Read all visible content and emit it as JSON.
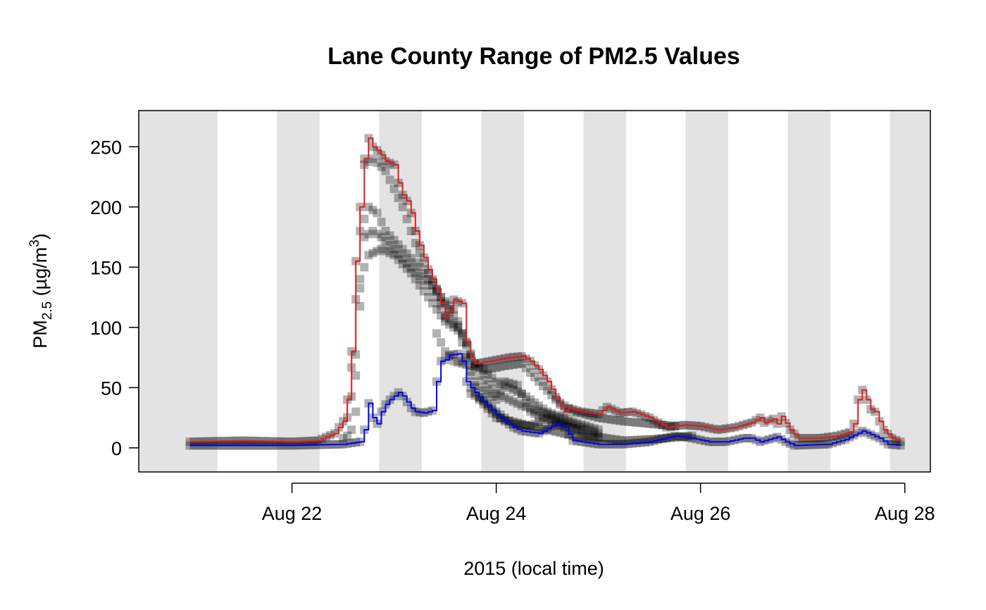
{
  "chart_data": {
    "type": "scatter",
    "title": "Lane County Range of PM2.5 Values",
    "xlabel": "2015  (local time)",
    "ylabel": {
      "pre": "PM",
      "sub": "2.5",
      "mid": " (µg/m",
      "sup": "3",
      "post": ")"
    },
    "x_date_start": "2015-08-21T00:00",
    "x_date_end": "2015-08-28T00:00",
    "xlim": [
      "2015-08-20T12:00",
      "2015-08-28T06:00"
    ],
    "ylim": [
      -20,
      280
    ],
    "yticks": [
      0,
      50,
      100,
      150,
      200,
      250
    ],
    "ytick_labels": [
      "0",
      "50",
      "100",
      "150",
      "200",
      "250"
    ],
    "xticks": [
      "2015-08-22T00:00",
      "2015-08-24T00:00",
      "2015-08-26T00:00",
      "2015-08-28T00:00"
    ],
    "xtick_labels": [
      "Aug 22",
      "Aug 24",
      "Aug 26",
      "Aug 28"
    ],
    "night_shading": [
      {
        "start": "2015-08-20T12:00",
        "end": "2015-08-21T06:30"
      },
      {
        "start": "2015-08-21T20:30",
        "end": "2015-08-22T06:30"
      },
      {
        "start": "2015-08-22T20:30",
        "end": "2015-08-23T06:30"
      },
      {
        "start": "2015-08-23T20:30",
        "end": "2015-08-24T06:30"
      },
      {
        "start": "2015-08-24T20:30",
        "end": "2015-08-25T06:30"
      },
      {
        "start": "2015-08-25T20:30",
        "end": "2015-08-26T06:30"
      },
      {
        "start": "2015-08-26T20:30",
        "end": "2015-08-27T06:30"
      },
      {
        "start": "2015-08-27T20:30",
        "end": "2015-08-28T06:00"
      }
    ],
    "series": [
      {
        "name": "",
        "role": "max",
        "style": "step",
        "color": "#e41a1c",
        "points": [
          [
            "2015-08-21T00:00",
            5
          ],
          [
            "2015-08-21T12:00",
            6
          ],
          [
            "2015-08-22T00:00",
            5
          ],
          [
            "2015-08-22T06:00",
            6
          ],
          [
            "2015-08-22T10:00",
            12
          ],
          [
            "2015-08-22T12:00",
            22
          ],
          [
            "2015-08-22T13:00",
            40
          ],
          [
            "2015-08-22T14:00",
            80
          ],
          [
            "2015-08-22T15:00",
            155
          ],
          [
            "2015-08-22T16:00",
            200
          ],
          [
            "2015-08-22T17:00",
            240
          ],
          [
            "2015-08-22T18:00",
            257
          ],
          [
            "2015-08-22T19:00",
            250
          ],
          [
            "2015-08-22T20:00",
            247
          ],
          [
            "2015-08-22T21:00",
            243
          ],
          [
            "2015-08-22T22:00",
            238
          ],
          [
            "2015-08-23T00:00",
            235
          ],
          [
            "2015-08-23T01:00",
            220
          ],
          [
            "2015-08-23T02:00",
            210
          ],
          [
            "2015-08-23T03:00",
            205
          ],
          [
            "2015-08-23T04:00",
            195
          ],
          [
            "2015-08-23T05:00",
            180
          ],
          [
            "2015-08-23T06:00",
            168
          ],
          [
            "2015-08-23T07:00",
            158
          ],
          [
            "2015-08-23T08:00",
            148
          ],
          [
            "2015-08-23T09:00",
            140
          ],
          [
            "2015-08-23T10:00",
            132
          ],
          [
            "2015-08-23T11:00",
            120
          ],
          [
            "2015-08-23T12:00",
            108
          ],
          [
            "2015-08-23T13:00",
            113
          ],
          [
            "2015-08-23T14:00",
            123
          ],
          [
            "2015-08-23T16:00",
            120
          ],
          [
            "2015-08-23T17:00",
            88
          ],
          [
            "2015-08-23T18:00",
            75
          ],
          [
            "2015-08-23T19:00",
            70
          ],
          [
            "2015-08-23T21:00",
            71
          ],
          [
            "2015-08-24T00:00",
            73
          ],
          [
            "2015-08-24T03:00",
            75
          ],
          [
            "2015-08-24T06:00",
            76
          ],
          [
            "2015-08-24T08:00",
            72
          ],
          [
            "2015-08-24T10:00",
            65
          ],
          [
            "2015-08-24T12:00",
            55
          ],
          [
            "2015-08-24T14:00",
            42
          ],
          [
            "2015-08-24T16:00",
            30
          ],
          [
            "2015-08-24T17:00",
            33
          ],
          [
            "2015-08-24T20:00",
            30
          ],
          [
            "2015-08-25T00:00",
            28
          ],
          [
            "2015-08-25T02:00",
            34
          ],
          [
            "2015-08-25T05:00",
            29
          ],
          [
            "2015-08-25T08:00",
            30
          ],
          [
            "2015-08-25T12:00",
            25
          ],
          [
            "2015-08-25T16:00",
            17
          ],
          [
            "2015-08-25T20:00",
            19
          ],
          [
            "2015-08-26T00:00",
            18
          ],
          [
            "2015-08-26T04:00",
            15
          ],
          [
            "2015-08-26T08:00",
            17
          ],
          [
            "2015-08-26T12:00",
            21
          ],
          [
            "2015-08-26T14:00",
            25
          ],
          [
            "2015-08-26T15:00",
            21
          ],
          [
            "2015-08-26T17:00",
            24
          ],
          [
            "2015-08-26T18:00",
            20
          ],
          [
            "2015-08-26T19:00",
            26
          ],
          [
            "2015-08-26T21:00",
            15
          ],
          [
            "2015-08-26T23:00",
            8
          ],
          [
            "2015-08-27T04:00",
            8
          ],
          [
            "2015-08-27T08:00",
            10
          ],
          [
            "2015-08-27T11:00",
            13
          ],
          [
            "2015-08-27T12:00",
            20
          ],
          [
            "2015-08-27T13:00",
            40
          ],
          [
            "2015-08-27T14:00",
            48
          ],
          [
            "2015-08-27T15:00",
            40
          ],
          [
            "2015-08-27T16:00",
            32
          ],
          [
            "2015-08-27T17:00",
            30
          ],
          [
            "2015-08-27T18:00",
            22
          ],
          [
            "2015-08-27T19:00",
            15
          ],
          [
            "2015-08-27T21:00",
            8
          ],
          [
            "2015-08-27T23:00",
            5
          ]
        ]
      },
      {
        "name": "",
        "role": "min",
        "style": "step",
        "color": "#0000ff",
        "points": [
          [
            "2015-08-21T00:00",
            2
          ],
          [
            "2015-08-21T12:00",
            2
          ],
          [
            "2015-08-22T00:00",
            2
          ],
          [
            "2015-08-22T12:00",
            3
          ],
          [
            "2015-08-22T16:00",
            5
          ],
          [
            "2015-08-22T17:00",
            15
          ],
          [
            "2015-08-22T18:00",
            37
          ],
          [
            "2015-08-22T19:00",
            25
          ],
          [
            "2015-08-22T20:00",
            20
          ],
          [
            "2015-08-22T21:00",
            30
          ],
          [
            "2015-08-22T22:00",
            36
          ],
          [
            "2015-08-22T23:00",
            40
          ],
          [
            "2015-08-23T00:00",
            43
          ],
          [
            "2015-08-23T01:00",
            46
          ],
          [
            "2015-08-23T02:00",
            43
          ],
          [
            "2015-08-23T03:00",
            38
          ],
          [
            "2015-08-23T04:00",
            33
          ],
          [
            "2015-08-23T05:00",
            30
          ],
          [
            "2015-08-23T07:00",
            29
          ],
          [
            "2015-08-23T09:00",
            31
          ],
          [
            "2015-08-23T10:00",
            55
          ],
          [
            "2015-08-23T11:00",
            72
          ],
          [
            "2015-08-23T12:00",
            73
          ],
          [
            "2015-08-23T13:00",
            77
          ],
          [
            "2015-08-23T15:00",
            78
          ],
          [
            "2015-08-23T16:00",
            72
          ],
          [
            "2015-08-23T17:00",
            55
          ],
          [
            "2015-08-23T18:00",
            50
          ],
          [
            "2015-08-23T20:00",
            42
          ],
          [
            "2015-08-23T22:00",
            35
          ],
          [
            "2015-08-24T00:00",
            28
          ],
          [
            "2015-08-24T02:00",
            22
          ],
          [
            "2015-08-24T04:00",
            17
          ],
          [
            "2015-08-24T06:00",
            14
          ],
          [
            "2015-08-24T10:00",
            12
          ],
          [
            "2015-08-24T14:00",
            20
          ],
          [
            "2015-08-24T16:00",
            17
          ],
          [
            "2015-08-24T18:00",
            6
          ],
          [
            "2015-08-25T00:00",
            3
          ],
          [
            "2015-08-25T06:00",
            3
          ],
          [
            "2015-08-25T12:00",
            5
          ],
          [
            "2015-08-25T18:00",
            10
          ],
          [
            "2015-08-25T22:00",
            8
          ],
          [
            "2015-08-26T02:00",
            5
          ],
          [
            "2015-08-26T06:00",
            5
          ],
          [
            "2015-08-26T10:00",
            8
          ],
          [
            "2015-08-26T12:00",
            8
          ],
          [
            "2015-08-26T14:00",
            5
          ],
          [
            "2015-08-26T18:00",
            9
          ],
          [
            "2015-08-26T20:00",
            5
          ],
          [
            "2015-08-26T22:00",
            2
          ],
          [
            "2015-08-27T06:00",
            3
          ],
          [
            "2015-08-27T10:00",
            7
          ],
          [
            "2015-08-27T14:00",
            14
          ],
          [
            "2015-08-27T16:00",
            11
          ],
          [
            "2015-08-27T18:00",
            8
          ],
          [
            "2015-08-27T20:00",
            3
          ],
          [
            "2015-08-27T23:00",
            2
          ]
        ]
      }
    ],
    "site_traces": [
      [
        [
          "2015-08-22T12:00",
          8
        ],
        [
          "2015-08-22T15:00",
          60
        ],
        [
          "2015-08-22T17:00",
          175
        ],
        [
          "2015-08-22T19:00",
          180
        ],
        [
          "2015-08-22T21:00",
          175
        ],
        [
          "2015-08-23T00:00",
          165
        ],
        [
          "2015-08-23T04:00",
          150
        ],
        [
          "2015-08-23T08:00",
          135
        ],
        [
          "2015-08-23T10:00",
          125
        ],
        [
          "2015-08-23T12:00",
          110
        ],
        [
          "2015-08-23T15:00",
          100
        ],
        [
          "2015-08-23T17:00",
          75
        ],
        [
          "2015-08-23T20:00",
          40
        ],
        [
          "2015-08-24T00:00",
          25
        ],
        [
          "2015-08-24T06:00",
          20
        ],
        [
          "2015-08-24T12:00",
          15
        ],
        [
          "2015-08-24T18:00",
          10
        ],
        [
          "2015-08-25T00:00",
          8
        ]
      ],
      [
        [
          "2015-08-22T13:00",
          10
        ],
        [
          "2015-08-22T16:00",
          180
        ],
        [
          "2015-08-22T18:00",
          200
        ],
        [
          "2015-08-22T20:00",
          195
        ],
        [
          "2015-08-22T22:00",
          180
        ],
        [
          "2015-08-23T02:00",
          165
        ],
        [
          "2015-08-23T06:00",
          150
        ],
        [
          "2015-08-23T10:00",
          130
        ],
        [
          "2015-08-23T14:00",
          110
        ],
        [
          "2015-08-23T17:00",
          85
        ],
        [
          "2015-08-23T20:00",
          60
        ],
        [
          "2015-08-24T00:00",
          45
        ],
        [
          "2015-08-24T06:00",
          35
        ],
        [
          "2015-08-24T12:00",
          28
        ],
        [
          "2015-08-24T18:00",
          20
        ],
        [
          "2015-08-25T00:00",
          12
        ]
      ],
      [
        [
          "2015-08-22T14:00",
          15
        ],
        [
          "2015-08-22T16:00",
          140
        ],
        [
          "2015-08-22T18:00",
          160
        ],
        [
          "2015-08-22T21:00",
          165
        ],
        [
          "2015-08-23T00:00",
          160
        ],
        [
          "2015-08-23T04:00",
          145
        ],
        [
          "2015-08-23T08:00",
          125
        ],
        [
          "2015-08-23T12:00",
          105
        ],
        [
          "2015-08-23T16:00",
          95
        ],
        [
          "2015-08-23T19:00",
          70
        ],
        [
          "2015-08-24T00:00",
          55
        ],
        [
          "2015-08-24T06:00",
          45
        ],
        [
          "2015-08-24T12:00",
          30
        ],
        [
          "2015-08-24T18:00",
          22
        ],
        [
          "2015-08-25T00:00",
          15
        ]
      ],
      [
        [
          "2015-08-22T15:00",
          30
        ],
        [
          "2015-08-22T17:00",
          235
        ],
        [
          "2015-08-22T19:00",
          240
        ],
        [
          "2015-08-22T22:00",
          230
        ],
        [
          "2015-08-23T02:00",
          200
        ],
        [
          "2015-08-23T05:00",
          170
        ],
        [
          "2015-08-23T08:00",
          145
        ],
        [
          "2015-08-23T11:00",
          125
        ],
        [
          "2015-08-23T14:00",
          115
        ],
        [
          "2015-08-23T16:00",
          95
        ],
        [
          "2015-08-23T18:00",
          60
        ],
        [
          "2015-08-23T20:00",
          50
        ],
        [
          "2015-08-24T00:00",
          40
        ],
        [
          "2015-08-24T02:00",
          55
        ],
        [
          "2015-08-24T05:00",
          52
        ],
        [
          "2015-08-24T08:00",
          30
        ],
        [
          "2015-08-24T14:00",
          20
        ],
        [
          "2015-08-24T20:00",
          15
        ]
      ],
      [
        [
          "2015-08-23T10:00",
          95
        ],
        [
          "2015-08-23T12:00",
          80
        ],
        [
          "2015-08-23T14:00",
          72
        ],
        [
          "2015-08-23T18:00",
          68
        ],
        [
          "2015-08-23T22:00",
          65
        ],
        [
          "2015-08-24T02:00",
          68
        ],
        [
          "2015-08-24T06:00",
          70
        ],
        [
          "2015-08-24T10:00",
          55
        ],
        [
          "2015-08-24T14:00",
          40
        ],
        [
          "2015-08-24T18:00",
          30
        ],
        [
          "2015-08-25T00:00",
          25
        ],
        [
          "2015-08-25T06:00",
          22
        ],
        [
          "2015-08-25T12:00",
          20
        ],
        [
          "2015-08-25T18:00",
          18
        ]
      ],
      [
        [
          "2015-08-23T18:00",
          45
        ],
        [
          "2015-08-23T21:00",
          40
        ],
        [
          "2015-08-24T00:00",
          30
        ],
        [
          "2015-08-24T04:00",
          20
        ],
        [
          "2015-08-24T08:00",
          18
        ],
        [
          "2015-08-24T12:00",
          25
        ],
        [
          "2015-08-24T16:00",
          20
        ],
        [
          "2015-08-24T20:00",
          12
        ],
        [
          "2015-08-25T02:00",
          8
        ],
        [
          "2015-08-25T06:00",
          6
        ],
        [
          "2015-08-25T12:00",
          7
        ],
        [
          "2015-08-25T16:00",
          8
        ],
        [
          "2015-08-25T22:00",
          10
        ]
      ]
    ],
    "marker_color": "rgba(0,0,0,0.3)",
    "grid": false,
    "legend": "none"
  }
}
